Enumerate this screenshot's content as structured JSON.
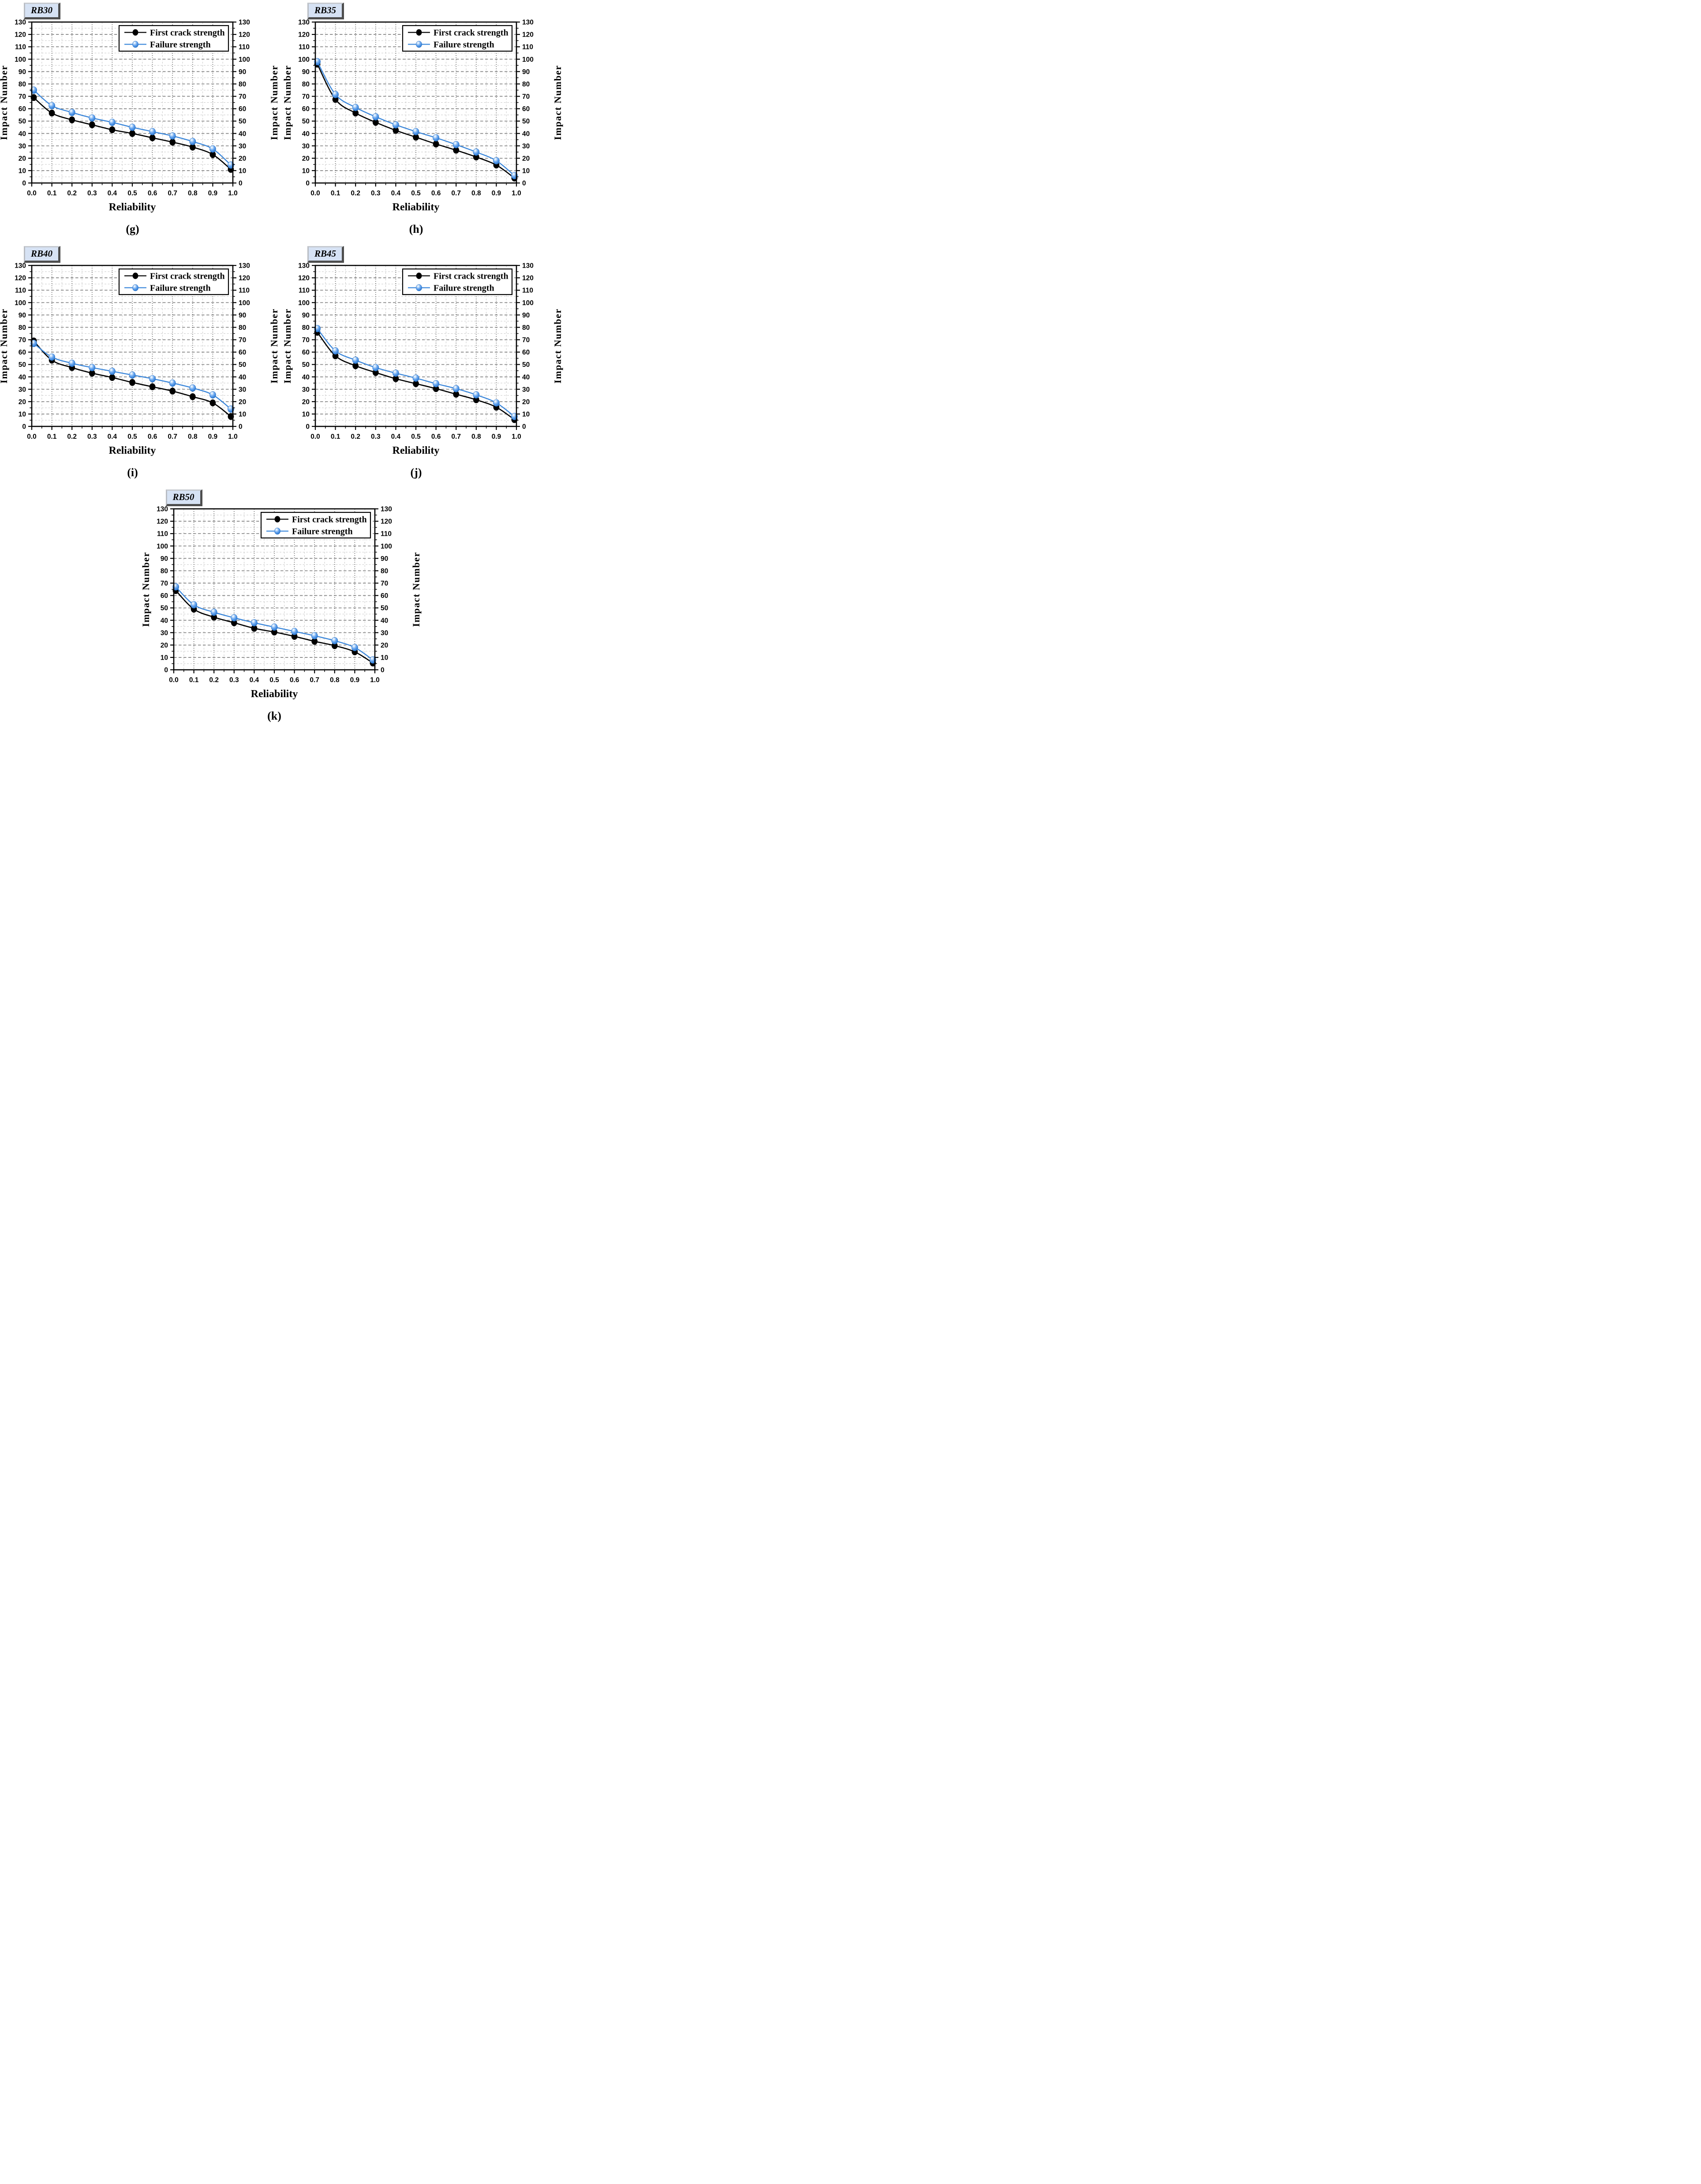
{
  "figure": {
    "xlabel": "Reliability",
    "ylabel_left": "Impact Number",
    "ylabel_right": "Impact Number",
    "xlim": [
      0.0,
      1.0
    ],
    "ylim": [
      0,
      130
    ],
    "xtick_step": 0.1,
    "xtick_minor_step": 0.05,
    "ytick_step": 10,
    "ytick_minor_step": 5,
    "grid": "on",
    "legend_position": "top-right-inside",
    "series_meta": [
      {
        "key": "first_crack",
        "label": "First crack strength",
        "line_color": "#000000",
        "marker_color": "#000000",
        "marker": "filled-circle"
      },
      {
        "key": "failure",
        "label": "Failure strength",
        "line_color": "#3a86da",
        "marker_color": "#4f9ae8",
        "marker": "glossy-ball"
      }
    ],
    "colors": {
      "background": "#ffffff",
      "axis": "#000000",
      "grid_major": "#8a8a8a",
      "grid_minor": "#c9c9c9",
      "badge_bg": "#d6e2f4",
      "badge_shadow": "#4e4e4e",
      "badge_highlight": "#c2c6cc",
      "accent_blue": "#3a86da"
    }
  },
  "chart_data": [
    {
      "panel": "g",
      "title": "RB30",
      "caption": "(g)",
      "type": "line",
      "xlabel": "Reliability",
      "ylabel": "Impact Number",
      "xlim": [
        0.0,
        1.0
      ],
      "ylim": [
        0,
        130
      ],
      "x": [
        0.01,
        0.1,
        0.2,
        0.3,
        0.4,
        0.5,
        0.6,
        0.7,
        0.8,
        0.9,
        0.99
      ],
      "series": [
        {
          "name": "First crack strength",
          "values": [
            69,
            56.5,
            51,
            47,
            43,
            40,
            36.5,
            33,
            29,
            23,
            11
          ]
        },
        {
          "name": "Failure strength",
          "values": [
            75,
            62.5,
            57,
            52.5,
            49,
            45,
            41.5,
            38,
            33.5,
            27.5,
            14.5
          ]
        }
      ]
    },
    {
      "panel": "h",
      "title": "RB35",
      "caption": "(h)",
      "type": "line",
      "xlabel": "Reliability",
      "ylabel": "Impact Number",
      "xlim": [
        0.0,
        1.0
      ],
      "ylim": [
        0,
        130
      ],
      "x": [
        0.01,
        0.1,
        0.2,
        0.3,
        0.4,
        0.5,
        0.6,
        0.7,
        0.8,
        0.9,
        0.99
      ],
      "series": [
        {
          "name": "First crack strength",
          "values": [
            96,
            67.5,
            56.5,
            49,
            42.5,
            37,
            31.5,
            26.5,
            21,
            14.5,
            4
          ]
        },
        {
          "name": "Failure strength",
          "values": [
            98,
            71.5,
            61,
            53.5,
            47,
            41.5,
            36.5,
            31,
            25,
            18,
            6
          ]
        }
      ]
    },
    {
      "panel": "i",
      "title": "RB40",
      "caption": "(i)",
      "type": "line",
      "xlabel": "Reliability",
      "ylabel": "Impact Number",
      "xlim": [
        0.0,
        1.0
      ],
      "ylim": [
        0,
        130
      ],
      "x": [
        0.01,
        0.1,
        0.2,
        0.3,
        0.4,
        0.5,
        0.6,
        0.7,
        0.8,
        0.9,
        0.99
      ],
      "series": [
        {
          "name": "First crack strength",
          "values": [
            69,
            53.5,
            47.5,
            43,
            39.5,
            35.5,
            32,
            28.5,
            24,
            19,
            8
          ]
        },
        {
          "name": "Failure strength",
          "values": [
            67,
            56,
            51,
            47.5,
            44.5,
            41.5,
            38.5,
            35,
            31,
            25.5,
            14
          ]
        }
      ]
    },
    {
      "panel": "j",
      "title": "RB45",
      "caption": "(j)",
      "type": "line",
      "xlabel": "Reliability",
      "ylabel": "Impact Number",
      "xlim": [
        0.0,
        1.0
      ],
      "ylim": [
        0,
        130
      ],
      "x": [
        0.01,
        0.1,
        0.2,
        0.3,
        0.4,
        0.5,
        0.6,
        0.7,
        0.8,
        0.9,
        0.99
      ],
      "series": [
        {
          "name": "First crack strength",
          "values": [
            76,
            57,
            49,
            43.5,
            38.5,
            34.5,
            30.5,
            26,
            21.5,
            15.5,
            5.5
          ]
        },
        {
          "name": "Failure strength",
          "values": [
            79,
            61,
            53.5,
            47.5,
            43,
            39,
            34.5,
            30.5,
            25.5,
            19,
            8
          ]
        }
      ]
    },
    {
      "panel": "k",
      "title": "RB50",
      "caption": "(k)",
      "type": "line",
      "xlabel": "Reliability",
      "ylabel": "Impact Number",
      "xlim": [
        0.0,
        1.0
      ],
      "ylim": [
        0,
        130
      ],
      "x": [
        0.01,
        0.1,
        0.2,
        0.3,
        0.4,
        0.5,
        0.6,
        0.7,
        0.8,
        0.9,
        0.99
      ],
      "series": [
        {
          "name": "First crack strength",
          "values": [
            64,
            49,
            42.5,
            38,
            33.5,
            30.5,
            27,
            23,
            19.5,
            14.5,
            5.5
          ]
        },
        {
          "name": "Failure strength",
          "values": [
            67,
            52.5,
            46.5,
            42,
            38,
            34.5,
            31,
            27.5,
            23.5,
            18,
            8
          ]
        }
      ]
    }
  ]
}
